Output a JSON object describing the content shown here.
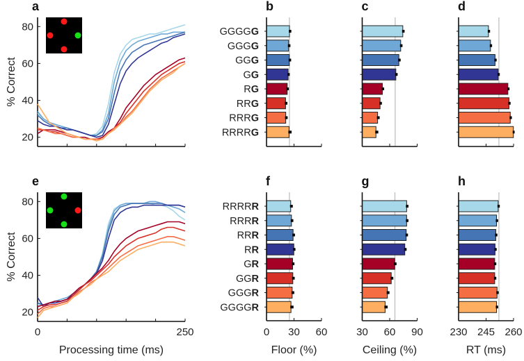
{
  "colors": [
    "#a6d8ea",
    "#6fa8d6",
    "#4575b4",
    "#313695",
    "#a50026",
    "#d73027",
    "#f46d43",
    "#fdae61"
  ],
  "chart_data": [
    {
      "panel": "a",
      "type": "line",
      "ylabel": "% Correct",
      "xlabel": "",
      "xlim": [
        0,
        250
      ],
      "ylim": [
        15,
        85
      ],
      "yticks": [
        20,
        40,
        60,
        80
      ],
      "xticks": [
        0,
        50,
        100,
        150,
        200,
        250
      ],
      "xticklabels": [],
      "inset": {
        "top": "red",
        "left": "red",
        "right": "green",
        "bottom": "red"
      },
      "x": [
        0,
        10,
        20,
        30,
        40,
        50,
        60,
        70,
        80,
        90,
        100,
        110,
        120,
        130,
        140,
        150,
        160,
        170,
        180,
        190,
        200,
        210,
        220,
        230,
        240,
        250
      ],
      "series": [
        {
          "values": [
            33,
            30,
            28,
            27,
            26,
            25,
            24,
            23,
            22,
            21,
            22,
            26,
            38,
            55,
            65,
            70,
            73,
            74,
            75,
            76,
            76,
            77,
            78,
            79,
            80,
            81
          ]
        },
        {
          "values": [
            34,
            30,
            28,
            27,
            26,
            25,
            24,
            23,
            22,
            21,
            21,
            24,
            33,
            50,
            61,
            67,
            70,
            72,
            73,
            74,
            75,
            76,
            76,
            77,
            77,
            77
          ]
        },
        {
          "values": [
            32,
            29,
            27,
            26,
            25,
            25,
            24,
            23,
            22,
            21,
            21,
            23,
            30,
            44,
            56,
            62,
            66,
            68,
            70,
            71,
            72,
            73,
            74,
            75,
            76,
            77
          ]
        },
        {
          "values": [
            29,
            27,
            26,
            26,
            25,
            24,
            24,
            23,
            22,
            21,
            20,
            21,
            27,
            38,
            49,
            56,
            60,
            63,
            65,
            67,
            69,
            71,
            72,
            74,
            75,
            76
          ]
        },
        {
          "values": [
            22,
            24,
            24,
            24,
            23,
            22,
            21,
            20,
            20,
            19,
            19,
            20,
            23,
            25,
            30,
            36,
            40,
            44,
            48,
            51,
            54,
            56,
            58,
            60,
            62,
            63
          ]
        },
        {
          "values": [
            24,
            24,
            23,
            23,
            22,
            21,
            20,
            20,
            19,
            19,
            19,
            19,
            22,
            25,
            28,
            33,
            37,
            41,
            45,
            48,
            51,
            54,
            56,
            58,
            60,
            61
          ]
        },
        {
          "values": [
            25,
            24,
            23,
            22,
            22,
            21,
            20,
            20,
            19,
            19,
            19,
            19,
            22,
            25,
            27,
            31,
            34,
            38,
            42,
            46,
            49,
            52,
            54,
            56,
            58,
            60
          ]
        },
        {
          "values": [
            38,
            33,
            28,
            26,
            24,
            22,
            21,
            20,
            19,
            19,
            18,
            19,
            22,
            24,
            27,
            30,
            33,
            37,
            41,
            45,
            48,
            51,
            53,
            55,
            58,
            60
          ]
        }
      ]
    },
    {
      "panel": "b",
      "type": "bar",
      "orientation": "horizontal",
      "categories": [
        "GGGGG",
        "GGGG",
        "GGG",
        "GG",
        "RG",
        "RRG",
        "RRRG",
        "RRRRG"
      ],
      "values": [
        25.1,
        24.1,
        24.9,
        23.6,
        22.6,
        20.8,
        21.0,
        24.6
      ],
      "errors": [
        1.2,
        1.2,
        1.2,
        1.0,
        1.0,
        1.2,
        1.3,
        2.0
      ],
      "xlim": [
        0,
        60
      ],
      "reference_line": 25,
      "xticklabels": [],
      "xlabel": ""
    },
    {
      "panel": "c",
      "type": "bar",
      "orientation": "horizontal",
      "values": [
        74.3,
        72.0,
        70.0,
        66.7,
        52.0,
        49.5,
        46.8,
        45.0
      ],
      "errors": [
        1.2,
        1.2,
        1.2,
        1.2,
        1.2,
        1.2,
        1.5,
        1.8
      ],
      "xlim": [
        30,
        90
      ],
      "reference_line": 66,
      "xticklabels": [],
      "xlabel": ""
    },
    {
      "panel": "d",
      "type": "bar",
      "orientation": "horizontal",
      "values": [
        246.3,
        247.4,
        249.9,
        251.6,
        256.9,
        257.5,
        258.2,
        259.9
      ],
      "errors": [
        0.5,
        0.5,
        0.5,
        0.5,
        0.5,
        0.5,
        0.5,
        0.3
      ],
      "xlim": [
        230,
        260
      ],
      "reference_line": 252,
      "xticklabels": [],
      "xlabel": ""
    },
    {
      "panel": "e",
      "type": "line",
      "ylabel": "% Correct",
      "xlabel": "Processing time (ms)",
      "xlim": [
        0,
        250
      ],
      "ylim": [
        15,
        85
      ],
      "yticks": [
        20,
        40,
        60,
        80
      ],
      "xticks": [
        0,
        50,
        100,
        150,
        200,
        250
      ],
      "xticklabels": [
        "0",
        "250"
      ],
      "inset": {
        "top": "green",
        "left": "green",
        "right": "red",
        "bottom": "green"
      },
      "x": [
        0,
        10,
        20,
        30,
        40,
        50,
        60,
        70,
        80,
        90,
        100,
        110,
        120,
        130,
        140,
        150,
        160,
        170,
        180,
        190,
        200,
        210,
        220,
        230,
        240,
        250
      ],
      "series": [
        {
          "values": [
            24,
            24,
            25,
            26,
            27,
            28,
            30,
            32,
            35,
            38,
            42,
            52,
            68,
            76,
            78,
            79,
            79,
            79,
            79,
            79,
            78,
            78,
            77,
            75,
            72,
            70
          ]
        },
        {
          "values": [
            25,
            24,
            25,
            26,
            27,
            28,
            30,
            32,
            35,
            38,
            42,
            51,
            66,
            75,
            78,
            79,
            79,
            79,
            79,
            80,
            80,
            79,
            78,
            77,
            76,
            74
          ]
        },
        {
          "values": [
            25,
            24,
            25,
            25,
            26,
            27,
            30,
            32,
            35,
            38,
            42,
            50,
            64,
            73,
            77,
            78,
            79,
            79,
            79,
            79,
            79,
            79,
            78,
            78,
            78,
            77
          ]
        },
        {
          "values": [
            28,
            23,
            25,
            25,
            26,
            27,
            29,
            32,
            35,
            38,
            41,
            48,
            60,
            70,
            74,
            76,
            77,
            77,
            78,
            78,
            78,
            78,
            78,
            78,
            78,
            77
          ]
        },
        {
          "values": [
            23,
            24,
            25,
            26,
            26,
            27,
            30,
            33,
            35,
            38,
            41,
            44,
            48,
            53,
            57,
            60,
            62,
            64,
            65,
            66,
            67,
            68,
            69,
            69,
            69,
            68
          ]
        },
        {
          "values": [
            21,
            23,
            24,
            24,
            25,
            26,
            29,
            32,
            35,
            37,
            40,
            43,
            46,
            50,
            53,
            56,
            58,
            60,
            61,
            62,
            63,
            65,
            66,
            66,
            65,
            64
          ]
        },
        {
          "values": [
            19,
            22,
            23,
            23,
            24,
            25,
            28,
            31,
            33,
            36,
            38,
            41,
            44,
            47,
            50,
            52,
            54,
            56,
            57,
            58,
            59,
            60,
            61,
            61,
            60,
            59
          ]
        },
        {
          "values": [
            17,
            21,
            22,
            23,
            24,
            25,
            28,
            30,
            33,
            35,
            38,
            40,
            42,
            45,
            48,
            50,
            52,
            54,
            55,
            56,
            57,
            58,
            58,
            58,
            57,
            56
          ]
        }
      ]
    },
    {
      "panel": "f",
      "type": "bar",
      "orientation": "horizontal",
      "categories": [
        "RRRRR",
        "RRRR",
        "RRR",
        "RR",
        "GR",
        "GGR",
        "GGGR",
        "GGGGR"
      ],
      "values": [
        26.4,
        27.2,
        29.0,
        29.8,
        28.5,
        28.7,
        28.0,
        26.7
      ],
      "errors": [
        1.5,
        1.3,
        1.3,
        1.0,
        1.2,
        1.3,
        1.5,
        2.0
      ],
      "xlim": [
        0,
        60
      ],
      "reference_line": 25,
      "xticklabels": [
        "0",
        "30",
        "60"
      ],
      "xlabel": "Floor (%)"
    },
    {
      "panel": "g",
      "type": "bar",
      "orientation": "horizontal",
      "values": [
        78.5,
        78.5,
        78.0,
        76.5,
        65.5,
        61.7,
        57.5,
        55.0
      ],
      "errors": [
        1.2,
        1.2,
        1.2,
        1.2,
        1.2,
        1.5,
        1.5,
        2.0
      ],
      "xlim": [
        30,
        90
      ],
      "reference_line": 65.7,
      "xticklabels": [
        "30",
        "60",
        "90"
      ],
      "xlabel": "Ceiling (%)"
    },
    {
      "panel": "h",
      "type": "bar",
      "orientation": "horizontal",
      "values": [
        251.6,
        250.7,
        250.3,
        249.9,
        249.7,
        249.7,
        251.0,
        250.7
      ],
      "errors": [
        0.5,
        0.5,
        0.5,
        0.5,
        0.5,
        0.5,
        0.5,
        0.5
      ],
      "xlim": [
        230,
        260
      ],
      "reference_line": 252,
      "xticklabels": [
        "230",
        "245",
        "260"
      ],
      "xlabel": "RT (ms)"
    }
  ]
}
